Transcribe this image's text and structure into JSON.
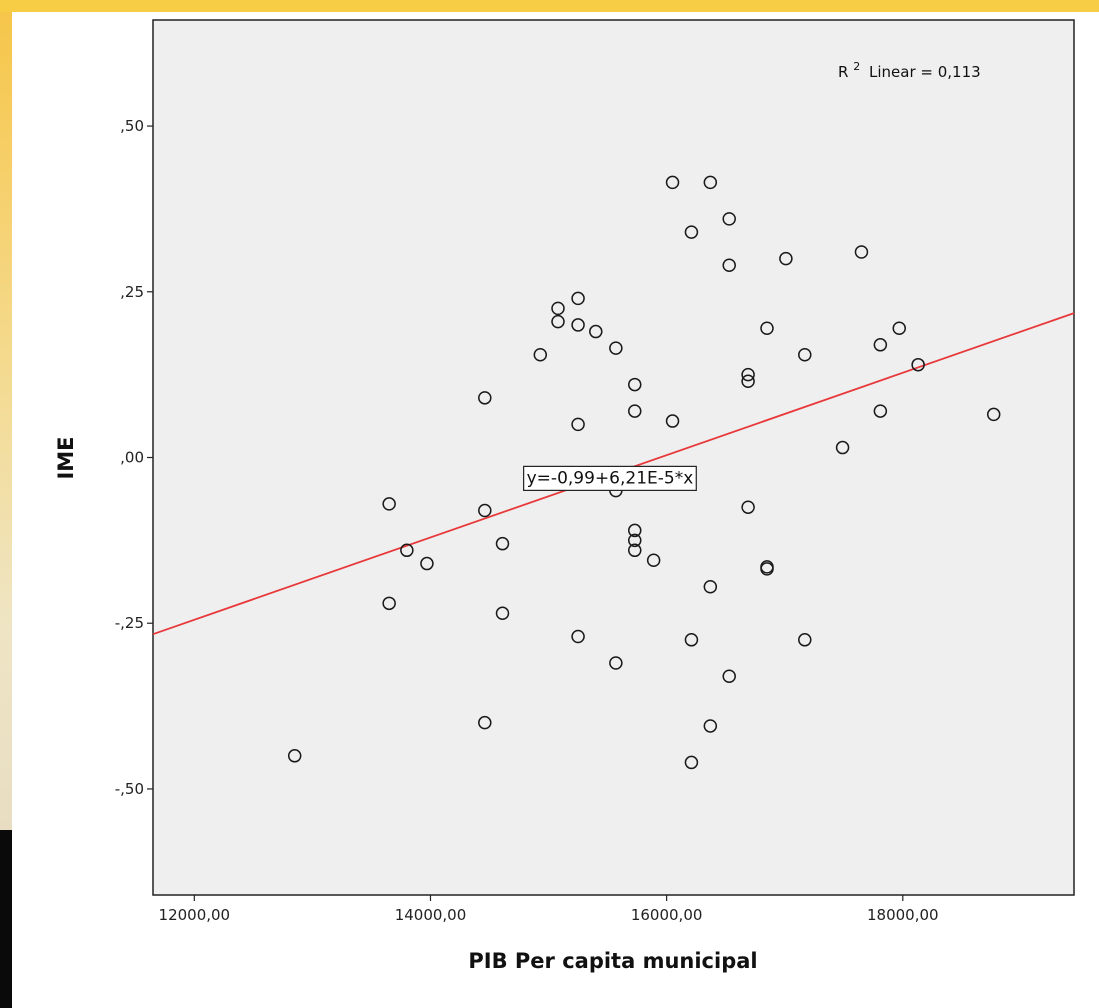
{
  "chart_data": {
    "type": "scatter",
    "xlabel": "PIB Per capita municipal",
    "ylabel": "IME",
    "xlim": [
      11650,
      19450
    ],
    "ylim": [
      -0.66,
      0.66
    ],
    "x_ticks": [
      12000,
      14000,
      16000,
      18000
    ],
    "x_tick_labels": [
      "12000,00",
      "14000,00",
      "16000,00",
      "18000,00"
    ],
    "y_ticks": [
      0.5,
      0.25,
      0,
      -0.25,
      -0.5
    ],
    "y_tick_labels": [
      ",50",
      ",25",
      ",00",
      "-,25",
      "-,50"
    ],
    "r2_label": "Linear = 0,113",
    "r2_prefix": "R",
    "r2_sup": "2",
    "fit": {
      "intercept": -0.99,
      "slope": 6.21e-05,
      "label": "y=-0,99+6,21E-5*x",
      "label_at": [
        15520,
        -0.03
      ],
      "color": "#e8383a"
    },
    "marker_color": "#1a1a1a",
    "plot_bg": "#efefef",
    "grid": false,
    "points": [
      {
        "x": 12850,
        "y": -0.45
      },
      {
        "x": 13650,
        "y": -0.07
      },
      {
        "x": 13650,
        "y": -0.22
      },
      {
        "x": 13800,
        "y": -0.14
      },
      {
        "x": 13970,
        "y": -0.16
      },
      {
        "x": 14460,
        "y": 0.09
      },
      {
        "x": 14460,
        "y": -0.08
      },
      {
        "x": 14460,
        "y": -0.4
      },
      {
        "x": 14610,
        "y": -0.13
      },
      {
        "x": 14610,
        "y": -0.235
      },
      {
        "x": 14930,
        "y": 0.155
      },
      {
        "x": 15080,
        "y": 0.225
      },
      {
        "x": 15080,
        "y": 0.205
      },
      {
        "x": 15250,
        "y": 0.24
      },
      {
        "x": 15250,
        "y": 0.2
      },
      {
        "x": 15250,
        "y": 0.05
      },
      {
        "x": 15250,
        "y": -0.27
      },
      {
        "x": 15400,
        "y": 0.19
      },
      {
        "x": 15570,
        "y": 0.165
      },
      {
        "x": 15570,
        "y": -0.05
      },
      {
        "x": 15570,
        "y": -0.31
      },
      {
        "x": 15730,
        "y": 0.11
      },
      {
        "x": 15730,
        "y": 0.07
      },
      {
        "x": 15730,
        "y": -0.11
      },
      {
        "x": 15730,
        "y": -0.125
      },
      {
        "x": 15730,
        "y": -0.14
      },
      {
        "x": 15890,
        "y": -0.155
      },
      {
        "x": 16050,
        "y": 0.415
      },
      {
        "x": 16050,
        "y": 0.055
      },
      {
        "x": 16210,
        "y": 0.34
      },
      {
        "x": 16210,
        "y": -0.275
      },
      {
        "x": 16210,
        "y": -0.46
      },
      {
        "x": 16370,
        "y": 0.415
      },
      {
        "x": 16370,
        "y": -0.195
      },
      {
        "x": 16370,
        "y": -0.405
      },
      {
        "x": 16530,
        "y": 0.36
      },
      {
        "x": 16530,
        "y": 0.29
      },
      {
        "x": 16530,
        "y": -0.33
      },
      {
        "x": 16690,
        "y": 0.125
      },
      {
        "x": 16690,
        "y": 0.115
      },
      {
        "x": 16690,
        "y": -0.075
      },
      {
        "x": 16850,
        "y": 0.195
      },
      {
        "x": 16850,
        "y": -0.165
      },
      {
        "x": 16850,
        "y": -0.168
      },
      {
        "x": 17010,
        "y": 0.3
      },
      {
        "x": 17170,
        "y": 0.155
      },
      {
        "x": 17170,
        "y": -0.275
      },
      {
        "x": 17490,
        "y": 0.015
      },
      {
        "x": 17650,
        "y": 0.31
      },
      {
        "x": 17810,
        "y": 0.17
      },
      {
        "x": 17810,
        "y": 0.07
      },
      {
        "x": 17970,
        "y": 0.195
      },
      {
        "x": 18130,
        "y": 0.14
      },
      {
        "x": 18770,
        "y": 0.065
      }
    ]
  }
}
